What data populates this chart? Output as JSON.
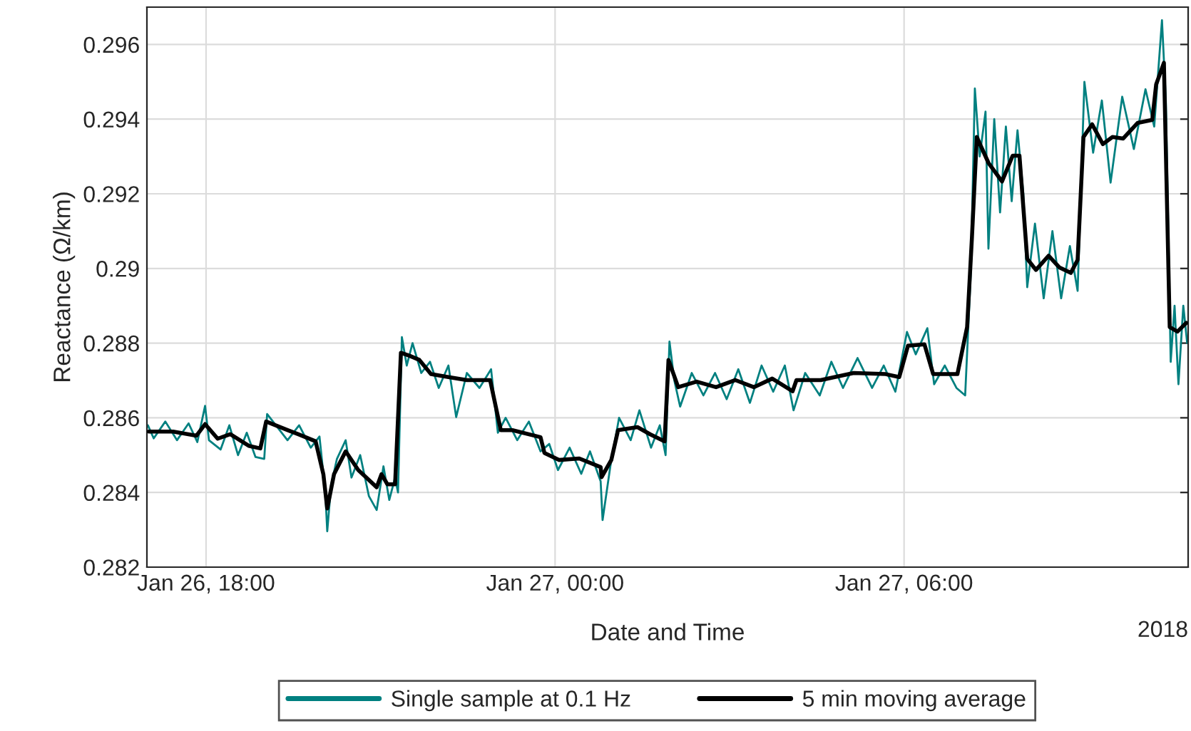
{
  "chart_data": {
    "type": "line",
    "xlabel": "Date and Time",
    "ylabel": "Reactance (Ω/km)",
    "xlim": [
      "2018-01-26T16:59",
      "2018-01-27T10:53"
    ],
    "ylim": [
      0.282,
      0.297
    ],
    "xticks": [
      {
        "value": "2018-01-26T18:00",
        "label": "Jan 26, 18:00"
      },
      {
        "value": "2018-01-27T00:00",
        "label": "Jan 27, 00:00"
      },
      {
        "value": "2018-01-27T06:00",
        "label": "Jan 27, 06:00"
      }
    ],
    "yticks": [
      {
        "value": 0.282,
        "label": "0.282"
      },
      {
        "value": 0.284,
        "label": "0.284"
      },
      {
        "value": 0.286,
        "label": "0.286"
      },
      {
        "value": 0.288,
        "label": "0.288"
      },
      {
        "value": 0.29,
        "label": "0.29"
      },
      {
        "value": 0.292,
        "label": "0.292"
      },
      {
        "value": 0.294,
        "label": "0.294"
      },
      {
        "value": 0.296,
        "label": "0.296"
      }
    ],
    "grid": true,
    "legend": "bottom",
    "marker": "none",
    "line_style": "solid",
    "annotations": [
      "2018"
    ],
    "series": [
      {
        "name": "Single sample at 0.1 Hz",
        "color": "#008080",
        "x": [
          "2018-01-26T17:00",
          "2018-01-26T17:06",
          "2018-01-26T17:18",
          "2018-01-26T17:30",
          "2018-01-26T17:42",
          "2018-01-26T17:51",
          "2018-01-26T17:59",
          "2018-01-26T18:03",
          "2018-01-26T18:15",
          "2018-01-26T18:24",
          "2018-01-26T18:33",
          "2018-01-26T18:42",
          "2018-01-26T18:51",
          "2018-01-26T19:00",
          "2018-01-26T19:03",
          "2018-01-26T19:12",
          "2018-01-26T19:24",
          "2018-01-26T19:36",
          "2018-01-26T19:48",
          "2018-01-26T19:57",
          "2018-01-26T20:03",
          "2018-01-26T20:05",
          "2018-01-26T20:09",
          "2018-01-26T20:15",
          "2018-01-26T20:24",
          "2018-01-26T20:30",
          "2018-01-26T20:39",
          "2018-01-26T20:48",
          "2018-01-26T20:56",
          "2018-01-26T21:03",
          "2018-01-26T21:09",
          "2018-01-26T21:15",
          "2018-01-26T21:18",
          "2018-01-26T21:22",
          "2018-01-26T21:27",
          "2018-01-26T21:33",
          "2018-01-26T21:42",
          "2018-01-26T21:51",
          "2018-01-26T22:00",
          "2018-01-26T22:10",
          "2018-01-26T22:18",
          "2018-01-26T22:29",
          "2018-01-26T22:42",
          "2018-01-26T22:54",
          "2018-01-26T23:01",
          "2018-01-26T23:09",
          "2018-01-26T23:21",
          "2018-01-26T23:33",
          "2018-01-26T23:45",
          "2018-01-26T23:54",
          "2018-01-27T00:03",
          "2018-01-27T00:15",
          "2018-01-27T00:27",
          "2018-01-27T00:36",
          "2018-01-27T00:47",
          "2018-01-27T00:49",
          "2018-01-27T00:57",
          "2018-01-27T01:06",
          "2018-01-27T01:18",
          "2018-01-27T01:27",
          "2018-01-27T01:39",
          "2018-01-27T01:48",
          "2018-01-27T01:54",
          "2018-01-27T01:58",
          "2018-01-27T02:03",
          "2018-01-27T02:09",
          "2018-01-27T02:21",
          "2018-01-27T02:33",
          "2018-01-27T02:45",
          "2018-01-27T02:57",
          "2018-01-27T03:09",
          "2018-01-27T03:21",
          "2018-01-27T03:33",
          "2018-01-27T03:45",
          "2018-01-27T03:57",
          "2018-01-27T04:06",
          "2018-01-27T04:18",
          "2018-01-27T04:33",
          "2018-01-27T04:45",
          "2018-01-27T04:57",
          "2018-01-27T05:12",
          "2018-01-27T05:27",
          "2018-01-27T05:39",
          "2018-01-27T05:51",
          "2018-01-27T06:03",
          "2018-01-27T06:12",
          "2018-01-27T06:24",
          "2018-01-27T06:31",
          "2018-01-27T06:42",
          "2018-01-27T06:54",
          "2018-01-27T07:03",
          "2018-01-27T07:09",
          "2018-01-27T07:13",
          "2018-01-27T07:18",
          "2018-01-27T07:24",
          "2018-01-27T07:27",
          "2018-01-27T07:33",
          "2018-01-27T07:39",
          "2018-01-27T07:45",
          "2018-01-27T07:51",
          "2018-01-27T07:57",
          "2018-01-27T08:03",
          "2018-01-27T08:07",
          "2018-01-27T08:15",
          "2018-01-27T08:24",
          "2018-01-27T08:33",
          "2018-01-27T08:42",
          "2018-01-27T08:51",
          "2018-01-27T08:59",
          "2018-01-27T09:06",
          "2018-01-27T09:15",
          "2018-01-27T09:24",
          "2018-01-27T09:33",
          "2018-01-27T09:45",
          "2018-01-27T09:57",
          "2018-01-27T10:09",
          "2018-01-27T10:18",
          "2018-01-27T10:26",
          "2018-01-27T10:30",
          "2018-01-27T10:35",
          "2018-01-27T10:39",
          "2018-01-27T10:43",
          "2018-01-27T10:48",
          "2018-01-27T10:52"
        ],
        "values": [
          0.2858,
          0.28545,
          0.2859,
          0.2854,
          0.28585,
          0.28535,
          0.28632,
          0.2854,
          0.28515,
          0.2858,
          0.285,
          0.2856,
          0.28495,
          0.2849,
          0.2861,
          0.2858,
          0.2854,
          0.2858,
          0.2852,
          0.2855,
          0.284,
          0.28296,
          0.2842,
          0.2849,
          0.2854,
          0.2844,
          0.285,
          0.2839,
          0.28353,
          0.2847,
          0.2838,
          0.2844,
          0.284,
          0.28816,
          0.2874,
          0.288,
          0.2872,
          0.2875,
          0.2868,
          0.2874,
          0.28602,
          0.2872,
          0.2868,
          0.2873,
          0.2856,
          0.286,
          0.2854,
          0.2859,
          0.2851,
          0.2853,
          0.2846,
          0.2852,
          0.2845,
          0.2851,
          0.2843,
          0.28326,
          0.2847,
          0.286,
          0.2854,
          0.2862,
          0.2852,
          0.2858,
          0.285,
          0.28804,
          0.287,
          0.2863,
          0.2872,
          0.2866,
          0.2872,
          0.2865,
          0.2873,
          0.2864,
          0.2874,
          0.2867,
          0.2874,
          0.2862,
          0.2872,
          0.2866,
          0.2875,
          0.2868,
          0.2876,
          0.2868,
          0.2874,
          0.2867,
          0.2883,
          0.2877,
          0.2884,
          0.2869,
          0.2874,
          0.2868,
          0.2866,
          0.29,
          0.29482,
          0.293,
          0.2942,
          0.29053,
          0.294,
          0.2915,
          0.2938,
          0.2918,
          0.2937,
          0.292,
          0.2895,
          0.2912,
          0.2892,
          0.291,
          0.2892,
          0.2906,
          0.2894,
          0.295,
          0.2931,
          0.2945,
          0.2923,
          0.2946,
          0.2932,
          0.2948,
          0.2938,
          0.29665,
          0.2945,
          0.2875,
          0.289,
          0.2869,
          0.289,
          0.288
        ]
      },
      {
        "name": "5 min moving average",
        "color": "#000000",
        "x": [
          "2018-01-26T17:01",
          "2018-01-26T17:26",
          "2018-01-26T17:50",
          "2018-01-26T17:59",
          "2018-01-26T18:12",
          "2018-01-26T18:25",
          "2018-01-26T18:44",
          "2018-01-26T18:56",
          "2018-01-26T19:02",
          "2018-01-26T19:24",
          "2018-01-26T19:35",
          "2018-01-26T19:53",
          "2018-01-26T20:01",
          "2018-01-26T20:05",
          "2018-01-26T20:12",
          "2018-01-26T20:24",
          "2018-01-26T20:37",
          "2018-01-26T20:56",
          "2018-01-26T21:01",
          "2018-01-26T21:07",
          "2018-01-26T21:15",
          "2018-01-26T21:21",
          "2018-01-26T21:30",
          "2018-01-26T21:40",
          "2018-01-26T21:52",
          "2018-01-26T22:10",
          "2018-01-26T22:29",
          "2018-01-26T22:53",
          "2018-01-26T23:04",
          "2018-01-26T23:16",
          "2018-01-26T23:45",
          "2018-01-26T23:49",
          "2018-01-27T00:04",
          "2018-01-27T00:25",
          "2018-01-27T00:47",
          "2018-01-27T00:48",
          "2018-01-27T00:58",
          "2018-01-27T01:05",
          "2018-01-27T01:25",
          "2018-01-27T01:38",
          "2018-01-27T01:53",
          "2018-01-27T01:57",
          "2018-01-27T02:07",
          "2018-01-27T02:26",
          "2018-01-27T02:46",
          "2018-01-27T03:06",
          "2018-01-27T03:25",
          "2018-01-27T03:44",
          "2018-01-27T04:05",
          "2018-01-27T04:09",
          "2018-01-27T04:34",
          "2018-01-27T05:08",
          "2018-01-27T05:41",
          "2018-01-27T05:55",
          "2018-01-27T06:04",
          "2018-01-27T06:21",
          "2018-01-27T06:30",
          "2018-01-27T06:55",
          "2018-01-27T07:05",
          "2018-01-27T07:10",
          "2018-01-27T07:15",
          "2018-01-27T07:27",
          "2018-01-27T07:41",
          "2018-01-27T07:52",
          "2018-01-27T07:59",
          "2018-01-27T08:07",
          "2018-01-27T08:16",
          "2018-01-27T08:29",
          "2018-01-27T08:40",
          "2018-01-27T08:52",
          "2018-01-27T08:59",
          "2018-01-27T09:05",
          "2018-01-27T09:14",
          "2018-01-27T09:25",
          "2018-01-27T09:35",
          "2018-01-27T09:46",
          "2018-01-27T10:01",
          "2018-01-27T10:16",
          "2018-01-27T10:20",
          "2018-01-27T10:28",
          "2018-01-27T10:34",
          "2018-01-27T10:42",
          "2018-01-27T10:51"
        ],
        "values": [
          0.28563,
          0.28563,
          0.28552,
          0.28583,
          0.28544,
          0.28556,
          0.28525,
          0.28518,
          0.2859,
          0.28567,
          0.28556,
          0.28537,
          0.28449,
          0.28357,
          0.28449,
          0.2851,
          0.2846,
          0.28414,
          0.28449,
          0.28422,
          0.28422,
          0.28774,
          0.28766,
          0.28755,
          0.28717,
          0.28709,
          0.28701,
          0.28701,
          0.28567,
          0.28567,
          0.28548,
          0.28506,
          0.28487,
          0.28491,
          0.28468,
          0.28441,
          0.28487,
          0.28567,
          0.28575,
          0.28556,
          0.28537,
          0.28755,
          0.28682,
          0.28697,
          0.28682,
          0.28701,
          0.28682,
          0.28705,
          0.28671,
          0.28701,
          0.28701,
          0.2872,
          0.28717,
          0.28709,
          0.28793,
          0.28797,
          0.28717,
          0.28717,
          0.28843,
          0.29084,
          0.29352,
          0.29283,
          0.29233,
          0.29302,
          0.29302,
          0.29026,
          0.28996,
          0.29034,
          0.29003,
          0.28988,
          0.29023,
          0.29352,
          0.29386,
          0.29333,
          0.29352,
          0.29348,
          0.2939,
          0.29398,
          0.29493,
          0.29551,
          0.28843,
          0.28831,
          0.28854
        ]
      }
    ]
  }
}
